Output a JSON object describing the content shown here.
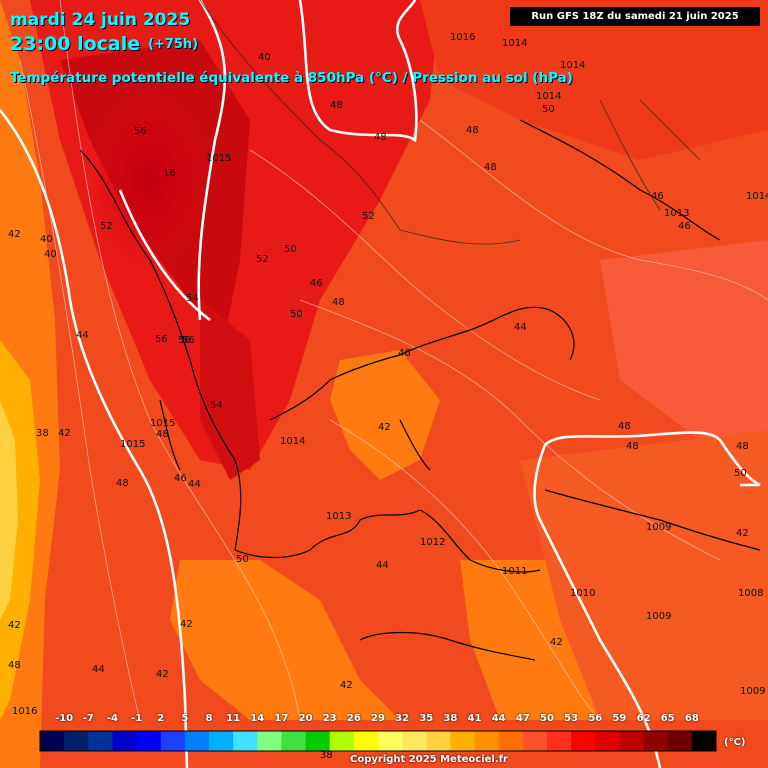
{
  "header": {
    "date": "mardi 24 juin 2025",
    "time": "23:00 locale",
    "lead": "(+75h)",
    "title": "Température potentielle équivalente à 850hPa (°C) / Pression au sol (hPa)",
    "run": "Run GFS 18Z du samedi 21 juin 2025"
  },
  "legend": {
    "values": [
      "-10",
      "-7",
      "-4",
      "-1",
      "2",
      "5",
      "8",
      "11",
      "14",
      "17",
      "20",
      "23",
      "26",
      "29",
      "32",
      "35",
      "38",
      "41",
      "44",
      "47",
      "50",
      "53",
      "56",
      "59",
      "62",
      "65",
      "68"
    ],
    "colors": [
      "#000050",
      "#001f6b",
      "#003399",
      "#0000cc",
      "#0000ff",
      "#1f3fff",
      "#0080ff",
      "#00b0ff",
      "#40e0ff",
      "#80ff80",
      "#40e040",
      "#00cc00",
      "#b0ff00",
      "#ffff00",
      "#ffff60",
      "#ffe860",
      "#ffd040",
      "#ffb000",
      "#ff9000",
      "#ff7000",
      "#ff5030",
      "#ff3020",
      "#ff0000",
      "#e00000",
      "#c00000",
      "#900000",
      "#700000",
      "#000000"
    ],
    "unit": "(°C)",
    "copyright": "Copyright 2025 Meteociel.fr"
  },
  "isobar_labels": [
    "1014",
    "1014",
    "1014",
    "1015",
    "1013",
    "1014",
    "1015",
    "1016",
    "1015",
    "1014",
    "1013",
    "1012",
    "1011",
    "1010",
    "1009",
    "1009",
    "1008",
    "1009",
    "1016"
  ],
  "theta_labels": [
    "56",
    "52",
    "48",
    "48",
    "48",
    "50",
    "48",
    "46",
    "46",
    "56",
    "56",
    "16",
    "42",
    "40",
    "40",
    "52",
    "52",
    "50",
    "46",
    "48",
    "54",
    "56",
    "50",
    "46",
    "44",
    "44",
    "54",
    "48",
    "38",
    "42",
    "42",
    "48",
    "46",
    "44",
    "48",
    "48",
    "50",
    "48",
    "42",
    "50",
    "44",
    "42",
    "42",
    "44",
    "42",
    "42",
    "40",
    "38",
    "42",
    "48"
  ]
}
